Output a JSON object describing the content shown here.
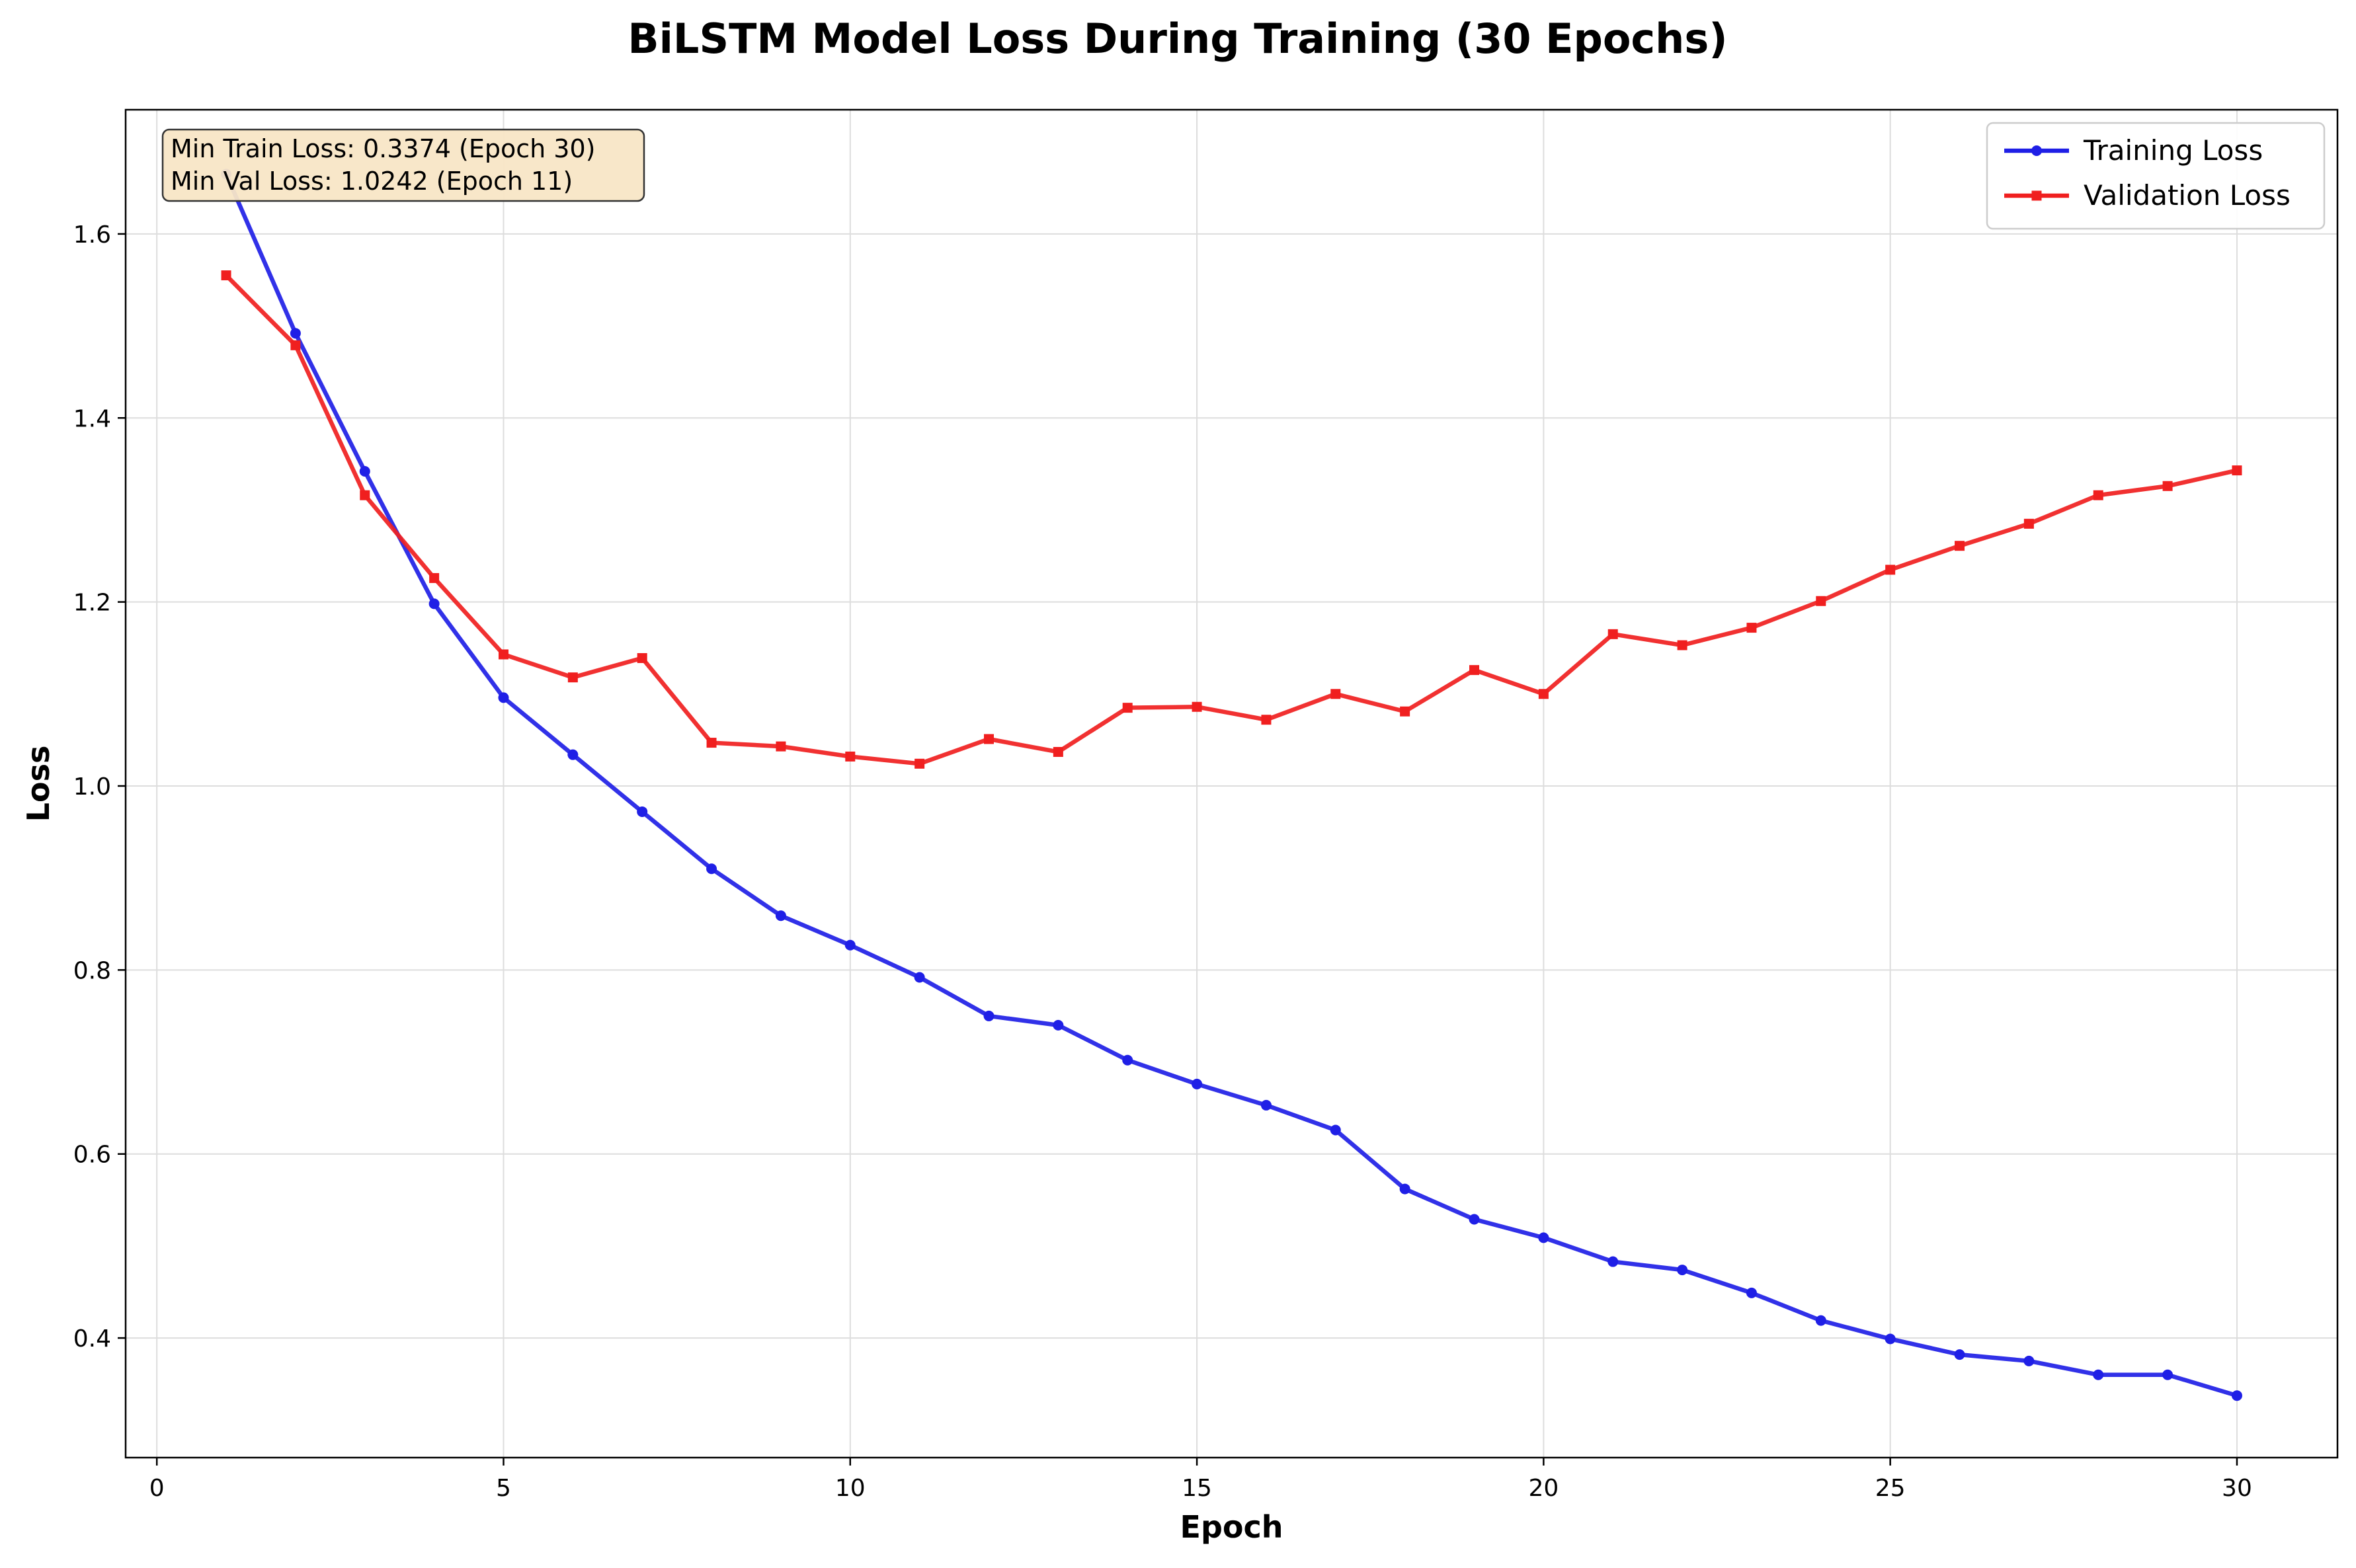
{
  "chart_data": {
    "type": "line",
    "title": "BiLSTM Model Loss During Training (30 Epochs)",
    "xlabel": "Epoch",
    "ylabel": "Loss",
    "xlim": [
      -0.45,
      31.45
    ],
    "ylim": [
      0.27,
      1.735
    ],
    "xticks": [
      0,
      5,
      10,
      15,
      20,
      25,
      30
    ],
    "xtick_labels": [
      "0",
      "5",
      "10",
      "15",
      "20",
      "25",
      "30"
    ],
    "yticks": [
      0.4,
      0.6,
      0.8,
      1.0,
      1.2,
      1.4,
      1.6
    ],
    "ytick_labels": [
      "0.4",
      "0.6",
      "0.8",
      "1.0",
      "1.2",
      "1.4",
      "1.6"
    ],
    "grid": true,
    "legend_position": "top-right",
    "x": [
      1,
      2,
      3,
      4,
      5,
      6,
      7,
      8,
      9,
      10,
      11,
      12,
      13,
      14,
      15,
      16,
      17,
      18,
      19,
      20,
      21,
      22,
      23,
      24,
      25,
      26,
      27,
      28,
      29,
      30
    ],
    "series": [
      {
        "name": "Training Loss",
        "color": "#1f1fe6",
        "marker": "circle",
        "values": [
          1.665,
          1.492,
          1.342,
          1.198,
          1.096,
          1.034,
          0.972,
          0.91,
          0.859,
          0.827,
          0.792,
          0.75,
          0.74,
          0.702,
          0.676,
          0.653,
          0.626,
          0.562,
          0.529,
          0.509,
          0.483,
          0.474,
          0.449,
          0.419,
          0.399,
          0.382,
          0.375,
          0.36,
          0.36,
          0.3374
        ]
      },
      {
        "name": "Validation Loss",
        "color": "#f01f1f",
        "marker": "square",
        "values": [
          1.555,
          1.479,
          1.316,
          1.226,
          1.143,
          1.118,
          1.139,
          1.047,
          1.043,
          1.032,
          1.0242,
          1.051,
          1.037,
          1.085,
          1.086,
          1.072,
          1.1,
          1.081,
          1.126,
          1.1,
          1.165,
          1.153,
          1.172,
          1.201,
          1.235,
          1.261,
          1.285,
          1.316,
          1.326,
          1.343
        ]
      }
    ],
    "annotation": {
      "lines": [
        "Min Train Loss: 0.3374 (Epoch 30)",
        "Min Val Loss: 1.0242 (Epoch 11)"
      ],
      "position": "top-left",
      "background": "#f8e6c6"
    }
  }
}
